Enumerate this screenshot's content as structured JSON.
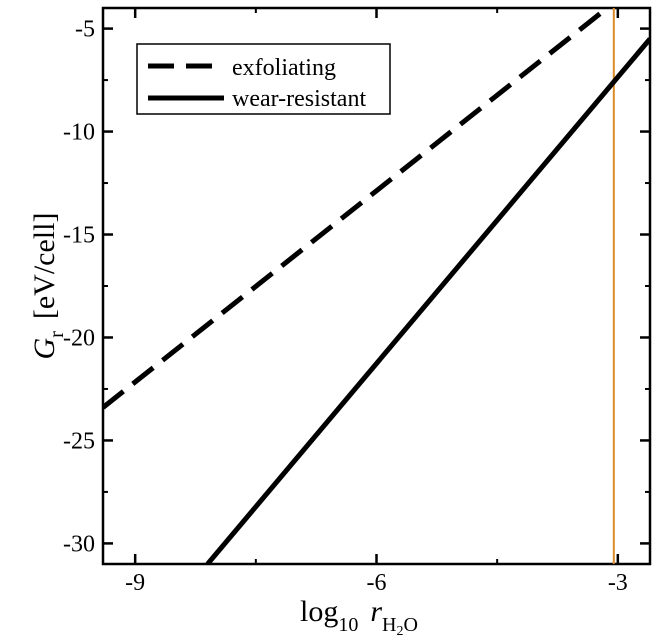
{
  "chart_data": {
    "type": "line",
    "xlabel": {
      "main": "log",
      "sub": "10",
      "var": "r",
      "var_sub": "H",
      "var_sub2": "2",
      "var_sub3": "O"
    },
    "ylabel": {
      "var": "G",
      "sub": "r",
      "unit": "[eV/cell]"
    },
    "xlim": [
      -9.4,
      -2.6
    ],
    "ylim": [
      -31,
      -4
    ],
    "xticks": [
      -9,
      -6,
      -3
    ],
    "xtick_labels": [
      "-9",
      "-6",
      "-3"
    ],
    "yticks": [
      -5,
      -10,
      -15,
      -20,
      -25,
      -30
    ],
    "ytick_labels": [
      "-5",
      "-10",
      "-15",
      "-20",
      "-25",
      "-30"
    ],
    "series": [
      {
        "name": "exfoliating",
        "style": "dashed",
        "color": "#000000",
        "x": [
          -9.4,
          -3.1
        ],
        "y": [
          -23.4,
          -3.9
        ]
      },
      {
        "name": "wear-resistant",
        "style": "solid",
        "color": "#000000",
        "x": [
          -8.1,
          -2.6
        ],
        "y": [
          -31.0,
          -5.5
        ]
      }
    ],
    "reference_line": {
      "type": "vertical",
      "x": -3.05,
      "color": "#d98a2a"
    },
    "legend": {
      "placement": "top-left"
    },
    "grid": false
  }
}
